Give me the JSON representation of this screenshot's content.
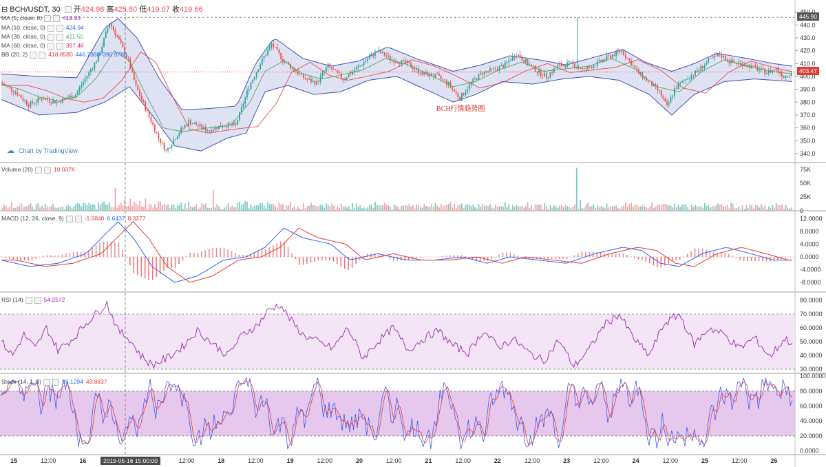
{
  "header": {
    "symbol": "BCH/USDT, 30",
    "open_label": "开",
    "open": "424.98",
    "high_label": "高",
    "high": "425.80",
    "low_label": "低",
    "low": "419.07",
    "close_label": "收",
    "close": "419.66"
  },
  "indicators": {
    "ma5": {
      "label": "MA (5, close, 0)",
      "value": "419.93",
      "color": "#9c27b0"
    },
    "ma10": {
      "label": "MA (10, close, 0)",
      "value": "424.94",
      "color": "#2962ff"
    },
    "ma30": {
      "label": "MA (30, close, 0)",
      "value": "411.50",
      "color": "#4caf50"
    },
    "ma60": {
      "label": "MA (60, close, 0)",
      "value": "397.46",
      "color": "#e91e63"
    },
    "bb": {
      "label": "BB (20, 2)",
      "v1": "418.8580",
      "v2": "446.7380",
      "v3": "390.9780"
    },
    "volume": {
      "label": "Volume (20)",
      "value": "10.037K"
    },
    "macd": {
      "label": "MACD (12, 26, close, 9)",
      "v1": "-1.6840",
      "v2": "6.6437",
      "v3": "8.3277"
    },
    "rsi": {
      "label": "RSI (14)",
      "value": "54.2572"
    },
    "stoch": {
      "label": "Stoch (14, 1, 3)",
      "v1": "35.1294",
      "v2": "43.8837"
    }
  },
  "branding": "Chart by TradingView",
  "watermark": "BCH行情趋势图",
  "crosshair_date": "2019-05-16 15:00:00",
  "price_tags": {
    "high": "445.90",
    "last": "403.47",
    "last_color": "#e53935",
    "high_color": "#555555"
  },
  "chart_data": {
    "type": "candlestick",
    "title": "BCH/USDT, 30",
    "x_ticks": [
      "15",
      "12:00",
      "16",
      "12:00",
      "17",
      "12:00",
      "18",
      "12:00",
      "19",
      "12:00",
      "20",
      "12:00",
      "21",
      "12:00",
      "22",
      "12:00",
      "23",
      "12:00",
      "24",
      "12:00",
      "25",
      "12:00",
      "26"
    ],
    "price_axis": {
      "ticks": [
        340,
        350,
        360,
        370,
        380,
        390,
        400,
        410,
        420,
        430,
        440,
        450
      ],
      "ylim": [
        333,
        453
      ]
    },
    "price_path": [
      [
        0,
        395
      ],
      [
        8,
        388
      ],
      [
        15,
        378
      ],
      [
        22,
        383
      ],
      [
        30,
        380
      ],
      [
        40,
        386
      ],
      [
        52,
        415
      ],
      [
        58,
        442
      ],
      [
        63,
        428
      ],
      [
        68,
        412
      ],
      [
        72,
        392
      ],
      [
        78,
        372
      ],
      [
        84,
        352
      ],
      [
        88,
        342
      ],
      [
        94,
        355
      ],
      [
        100,
        365
      ],
      [
        110,
        358
      ],
      [
        118,
        362
      ],
      [
        125,
        362
      ],
      [
        132,
        392
      ],
      [
        138,
        410
      ],
      [
        144,
        425
      ],
      [
        150,
        413
      ],
      [
        156,
        405
      ],
      [
        162,
        398
      ],
      [
        168,
        395
      ],
      [
        174,
        408
      ],
      [
        182,
        398
      ],
      [
        190,
        407
      ],
      [
        200,
        420
      ],
      [
        208,
        413
      ],
      [
        216,
        410
      ],
      [
        224,
        402
      ],
      [
        232,
        400
      ],
      [
        238,
        394
      ],
      [
        244,
        383
      ],
      [
        250,
        395
      ],
      [
        256,
        403
      ],
      [
        262,
        405
      ],
      [
        268,
        409
      ],
      [
        274,
        418
      ],
      [
        280,
        410
      ],
      [
        286,
        403
      ],
      [
        290,
        400
      ],
      [
        296,
        408
      ],
      [
        303,
        410
      ],
      [
        310,
        405
      ],
      [
        318,
        411
      ],
      [
        324,
        416
      ],
      [
        330,
        420
      ],
      [
        334,
        412
      ],
      [
        338,
        404
      ],
      [
        344,
        396
      ],
      [
        350,
        388
      ],
      [
        354,
        376
      ],
      [
        358,
        390
      ],
      [
        364,
        398
      ],
      [
        370,
        404
      ],
      [
        376,
        412
      ],
      [
        382,
        417
      ],
      [
        388,
        411
      ],
      [
        394,
        410
      ],
      [
        400,
        407
      ],
      [
        407,
        403
      ],
      [
        412,
        406
      ],
      [
        416,
        400
      ],
      [
        420,
        403
      ]
    ],
    "ma_path": [
      [
        0,
        394
      ],
      [
        10,
        390
      ],
      [
        20,
        384
      ],
      [
        30,
        381
      ],
      [
        40,
        384
      ],
      [
        50,
        398
      ],
      [
        60,
        420
      ],
      [
        68,
        412
      ],
      [
        76,
        388
      ],
      [
        86,
        360
      ],
      [
        96,
        357
      ],
      [
        110,
        360
      ],
      [
        122,
        362
      ],
      [
        132,
        380
      ],
      [
        140,
        404
      ],
      [
        150,
        412
      ],
      [
        160,
        402
      ],
      [
        170,
        398
      ],
      [
        180,
        401
      ],
      [
        192,
        405
      ],
      [
        204,
        414
      ],
      [
        216,
        409
      ],
      [
        228,
        401
      ],
      [
        240,
        392
      ],
      [
        252,
        396
      ],
      [
        264,
        405
      ],
      [
        276,
        411
      ],
      [
        288,
        404
      ],
      [
        300,
        406
      ],
      [
        312,
        408
      ],
      [
        324,
        414
      ],
      [
        336,
        406
      ],
      [
        348,
        392
      ],
      [
        360,
        388
      ],
      [
        372,
        404
      ],
      [
        384,
        413
      ],
      [
        396,
        408
      ],
      [
        408,
        404
      ],
      [
        420,
        402
      ]
    ],
    "bb_upper_path": [
      [
        0,
        402
      ],
      [
        20,
        400
      ],
      [
        40,
        399
      ],
      [
        55,
        438
      ],
      [
        62,
        445
      ],
      [
        72,
        430
      ],
      [
        84,
        398
      ],
      [
        96,
        374
      ],
      [
        110,
        375
      ],
      [
        125,
        377
      ],
      [
        135,
        410
      ],
      [
        145,
        430
      ],
      [
        160,
        414
      ],
      [
        175,
        408
      ],
      [
        190,
        412
      ],
      [
        205,
        423
      ],
      [
        220,
        414
      ],
      [
        240,
        404
      ],
      [
        255,
        409
      ],
      [
        270,
        416
      ],
      [
        285,
        413
      ],
      [
        300,
        409
      ],
      [
        315,
        415
      ],
      [
        330,
        421
      ],
      [
        342,
        411
      ],
      [
        356,
        404
      ],
      [
        368,
        410
      ],
      [
        380,
        418
      ],
      [
        396,
        414
      ],
      [
        410,
        410
      ],
      [
        420,
        408
      ]
    ],
    "bb_lower_path": [
      [
        0,
        382
      ],
      [
        20,
        370
      ],
      [
        40,
        372
      ],
      [
        55,
        380
      ],
      [
        68,
        392
      ],
      [
        80,
        370
      ],
      [
        92,
        346
      ],
      [
        106,
        342
      ],
      [
        120,
        352
      ],
      [
        130,
        356
      ],
      [
        140,
        388
      ],
      [
        152,
        393
      ],
      [
        166,
        386
      ],
      [
        180,
        388
      ],
      [
        195,
        397
      ],
      [
        210,
        400
      ],
      [
        225,
        390
      ],
      [
        240,
        380
      ],
      [
        252,
        386
      ],
      [
        266,
        396
      ],
      [
        282,
        394
      ],
      [
        298,
        398
      ],
      [
        312,
        400
      ],
      [
        328,
        397
      ],
      [
        344,
        386
      ],
      [
        356,
        370
      ],
      [
        368,
        386
      ],
      [
        384,
        396
      ],
      [
        400,
        398
      ],
      [
        420,
        396
      ]
    ],
    "volume": {
      "ylabel_ticks": [
        "0",
        "25K",
        "50K",
        "75K"
      ],
      "ylim": [
        0,
        80000
      ]
    },
    "macd": {
      "ticks": [
        -8,
        -4,
        0,
        4,
        8,
        12
      ],
      "ylim": [
        -11,
        14
      ],
      "path": [
        [
          0,
          -1
        ],
        [
          15,
          -3
        ],
        [
          30,
          -2
        ],
        [
          45,
          1
        ],
        [
          55,
          7
        ],
        [
          62,
          11
        ],
        [
          70,
          6
        ],
        [
          80,
          -3
        ],
        [
          92,
          -8
        ],
        [
          104,
          -6
        ],
        [
          118,
          -1
        ],
        [
          130,
          0
        ],
        [
          140,
          3
        ],
        [
          150,
          9
        ],
        [
          160,
          6
        ],
        [
          175,
          4
        ],
        [
          185,
          -1
        ],
        [
          200,
          1
        ],
        [
          215,
          -1
        ],
        [
          230,
          -1
        ],
        [
          245,
          0
        ],
        [
          258,
          -2
        ],
        [
          270,
          0
        ],
        [
          285,
          -1
        ],
        [
          300,
          -2
        ],
        [
          315,
          1
        ],
        [
          330,
          3
        ],
        [
          340,
          2
        ],
        [
          350,
          -2
        ],
        [
          360,
          -3
        ],
        [
          372,
          1
        ],
        [
          385,
          3
        ],
        [
          398,
          1
        ],
        [
          410,
          -1
        ],
        [
          420,
          -1
        ]
      ]
    },
    "rsi": {
      "ticks": [
        30,
        40,
        50,
        60,
        70,
        80
      ],
      "ylim": [
        27,
        85
      ],
      "band": [
        30,
        70
      ],
      "path": [
        [
          0,
          50
        ],
        [
          6,
          40
        ],
        [
          12,
          55
        ],
        [
          18,
          45
        ],
        [
          24,
          60
        ],
        [
          30,
          44
        ],
        [
          38,
          52
        ],
        [
          44,
          62
        ],
        [
          50,
          70
        ],
        [
          56,
          78
        ],
        [
          62,
          58
        ],
        [
          68,
          52
        ],
        [
          74,
          40
        ],
        [
          80,
          33
        ],
        [
          88,
          38
        ],
        [
          96,
          46
        ],
        [
          104,
          58
        ],
        [
          112,
          49
        ],
        [
          120,
          40
        ],
        [
          128,
          55
        ],
        [
          136,
          62
        ],
        [
          142,
          73
        ],
        [
          148,
          77
        ],
        [
          154,
          65
        ],
        [
          160,
          55
        ],
        [
          168,
          50
        ],
        [
          176,
          45
        ],
        [
          184,
          60
        ],
        [
          192,
          38
        ],
        [
          200,
          50
        ],
        [
          208,
          60
        ],
        [
          216,
          44
        ],
        [
          224,
          52
        ],
        [
          232,
          58
        ],
        [
          240,
          47
        ],
        [
          248,
          42
        ],
        [
          256,
          58
        ],
        [
          264,
          46
        ],
        [
          272,
          52
        ],
        [
          280,
          42
        ],
        [
          288,
          36
        ],
        [
          296,
          51
        ],
        [
          304,
          32
        ],
        [
          312,
          44
        ],
        [
          320,
          62
        ],
        [
          328,
          70
        ],
        [
          336,
          52
        ],
        [
          344,
          40
        ],
        [
          352,
          63
        ],
        [
          360,
          70
        ],
        [
          368,
          48
        ],
        [
          376,
          60
        ],
        [
          384,
          55
        ],
        [
          392,
          45
        ],
        [
          400,
          53
        ],
        [
          408,
          39
        ],
        [
          416,
          52
        ],
        [
          420,
          49
        ]
      ]
    },
    "stoch": {
      "ticks": [
        0,
        20,
        40,
        60,
        80,
        100
      ],
      "ylim": [
        -5,
        102
      ],
      "band": [
        20,
        80
      ]
    }
  }
}
